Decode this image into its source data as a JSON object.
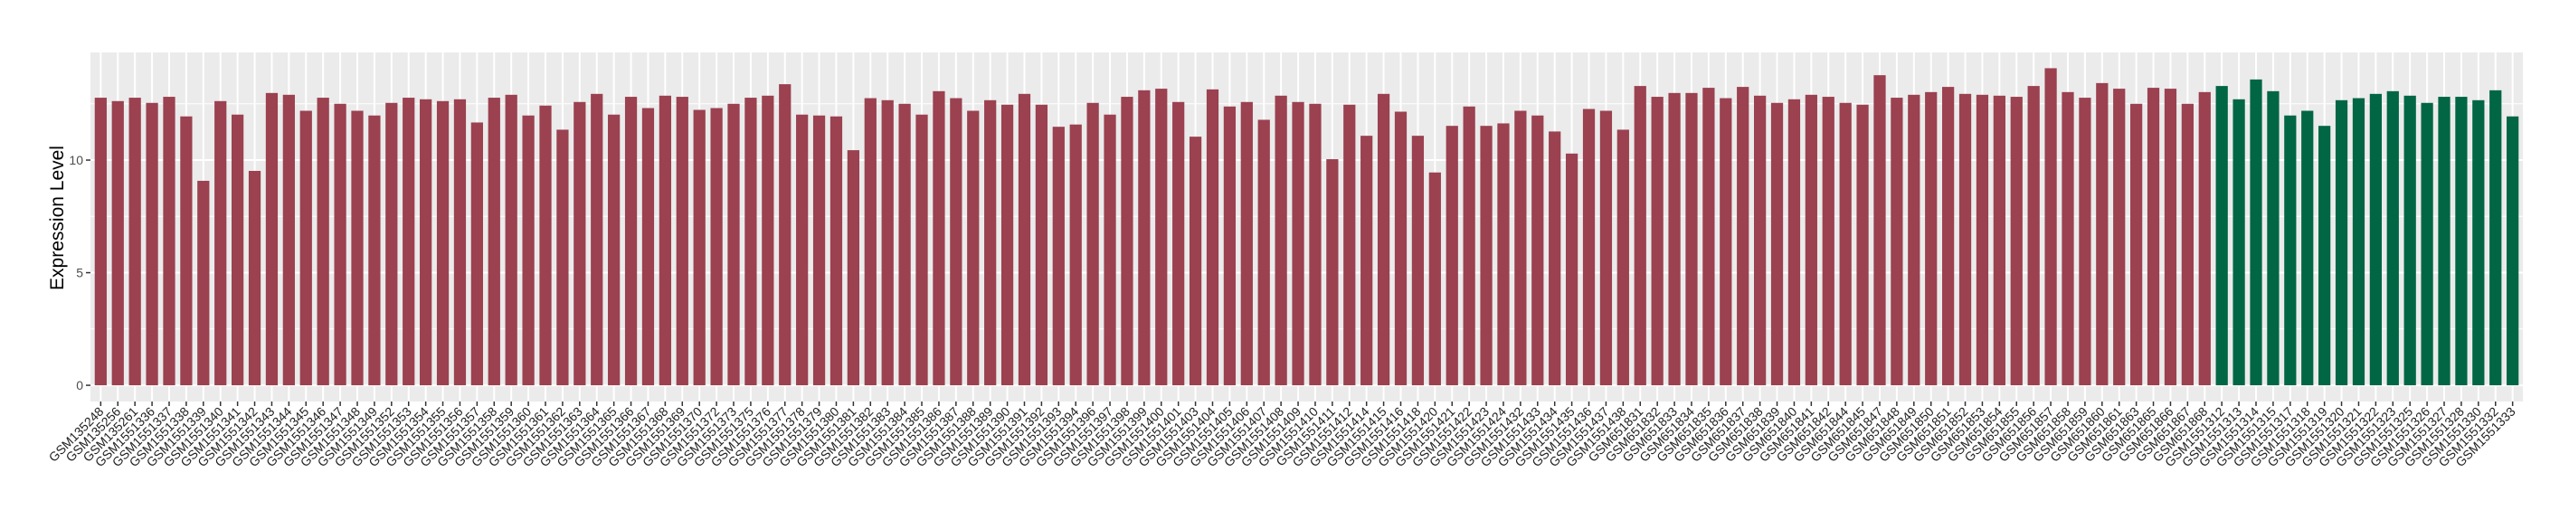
{
  "chart_data": {
    "type": "bar",
    "title": "",
    "xlabel": "",
    "ylabel": "Expression Level",
    "ylim": [
      -0.72,
      14.78
    ],
    "yticks": [
      0,
      5,
      10
    ],
    "grid": true,
    "legend": "none",
    "colors": {
      "group1": "#9b4150",
      "group2": "#016644",
      "panel": "#ebebeb",
      "grid": "#ffffff"
    },
    "categories": [
      "GSM135248",
      "GSM135256",
      "GSM135261",
      "GSM1551336",
      "GSM1551337",
      "GSM1551338",
      "GSM1551339",
      "GSM1551340",
      "GSM1551341",
      "GSM1551342",
      "GSM1551343",
      "GSM1551344",
      "GSM1551345",
      "GSM1551346",
      "GSM1551347",
      "GSM1551348",
      "GSM1551349",
      "GSM1551352",
      "GSM1551353",
      "GSM1551354",
      "GSM1551355",
      "GSM1551356",
      "GSM1551357",
      "GSM1551358",
      "GSM1551359",
      "GSM1551360",
      "GSM1551361",
      "GSM1551362",
      "GSM1551363",
      "GSM1551364",
      "GSM1551365",
      "GSM1551366",
      "GSM1551367",
      "GSM1551368",
      "GSM1551369",
      "GSM1551370",
      "GSM1551372",
      "GSM1551373",
      "GSM1551375",
      "GSM1551376",
      "GSM1551377",
      "GSM1551378",
      "GSM1551379",
      "GSM1551380",
      "GSM1551381",
      "GSM1551382",
      "GSM1551383",
      "GSM1551384",
      "GSM1551385",
      "GSM1551386",
      "GSM1551387",
      "GSM1551388",
      "GSM1551389",
      "GSM1551390",
      "GSM1551391",
      "GSM1551392",
      "GSM1551393",
      "GSM1551394",
      "GSM1551396",
      "GSM1551397",
      "GSM1551398",
      "GSM1551399",
      "GSM1551400",
      "GSM1551401",
      "GSM1551403",
      "GSM1551404",
      "GSM1551405",
      "GSM1551406",
      "GSM1551407",
      "GSM1551408",
      "GSM1551409",
      "GSM1551410",
      "GSM1551411",
      "GSM1551412",
      "GSM1551414",
      "GSM1551415",
      "GSM1551416",
      "GSM1551418",
      "GSM1551420",
      "GSM1551421",
      "GSM1551422",
      "GSM1551423",
      "GSM1551424",
      "GSM1551432",
      "GSM1551433",
      "GSM1551434",
      "GSM1551435",
      "GSM1551436",
      "GSM1551437",
      "GSM1551438",
      "GSM651831",
      "GSM651832",
      "GSM651833",
      "GSM651834",
      "GSM651835",
      "GSM651836",
      "GSM651837",
      "GSM651838",
      "GSM651839",
      "GSM651840",
      "GSM651841",
      "GSM651842",
      "GSM651844",
      "GSM651845",
      "GSM651847",
      "GSM651848",
      "GSM651849",
      "GSM651850",
      "GSM651851",
      "GSM651852",
      "GSM651853",
      "GSM651854",
      "GSM651855",
      "GSM651856",
      "GSM651857",
      "GSM651858",
      "GSM651859",
      "GSM651860",
      "GSM651861",
      "GSM651863",
      "GSM651865",
      "GSM651866",
      "GSM651867",
      "GSM651868",
      "GSM1551312",
      "GSM1551313",
      "GSM1551314",
      "GSM1551315",
      "GSM1551317",
      "GSM1551318",
      "GSM1551319",
      "GSM1551320",
      "GSM1551321",
      "GSM1551322",
      "GSM1551323",
      "GSM1551325",
      "GSM1551326",
      "GSM1551327",
      "GSM1551328",
      "GSM1551330",
      "GSM1551332",
      "GSM1551333"
    ],
    "values": [
      12.77,
      12.62,
      12.77,
      12.54,
      12.81,
      11.94,
      9.08,
      12.62,
      12.02,
      9.52,
      12.98,
      12.9,
      12.19,
      12.77,
      12.5,
      12.19,
      11.98,
      12.54,
      12.77,
      12.7,
      12.62,
      12.7,
      11.67,
      12.77,
      12.9,
      11.98,
      12.42,
      11.35,
      12.58,
      12.94,
      12.02,
      12.81,
      12.31,
      12.86,
      12.81,
      12.23,
      12.31,
      12.5,
      12.77,
      12.86,
      13.37,
      12.02,
      11.98,
      11.94,
      10.44,
      12.75,
      12.66,
      12.5,
      12.02,
      13.06,
      12.75,
      12.19,
      12.66,
      12.46,
      12.94,
      12.46,
      11.48,
      11.58,
      12.54,
      12.02,
      12.81,
      13.1,
      13.17,
      12.58,
      11.04,
      13.14,
      12.38,
      12.58,
      11.79,
      12.86,
      12.58,
      12.5,
      10.04,
      12.46,
      11.08,
      12.94,
      12.15,
      11.08,
      9.45,
      11.52,
      12.38,
      11.52,
      11.63,
      12.19,
      11.98,
      11.27,
      10.29,
      12.27,
      12.19,
      11.35,
      13.29,
      12.81,
      12.98,
      12.98,
      13.21,
      12.75,
      13.25,
      12.86,
      12.54,
      12.7,
      12.9,
      12.81,
      12.54,
      12.46,
      13.77,
      12.77,
      12.9,
      13.02,
      13.25,
      12.94,
      12.9,
      12.86,
      12.81,
      13.29,
      14.08,
      13.02,
      12.77,
      13.42,
      13.17,
      12.5,
      13.21,
      13.17,
      12.5,
      13.02,
      13.29,
      12.7,
      13.58,
      13.06,
      11.98,
      12.19,
      11.52,
      12.66,
      12.75,
      12.94,
      13.06,
      12.86,
      12.54,
      12.81,
      12.81,
      12.66,
      13.1,
      11.94
    ],
    "groups": [
      1,
      1,
      1,
      1,
      1,
      1,
      1,
      1,
      1,
      1,
      1,
      1,
      1,
      1,
      1,
      1,
      1,
      1,
      1,
      1,
      1,
      1,
      1,
      1,
      1,
      1,
      1,
      1,
      1,
      1,
      1,
      1,
      1,
      1,
      1,
      1,
      1,
      1,
      1,
      1,
      1,
      1,
      1,
      1,
      1,
      1,
      1,
      1,
      1,
      1,
      1,
      1,
      1,
      1,
      1,
      1,
      1,
      1,
      1,
      1,
      1,
      1,
      1,
      1,
      1,
      1,
      1,
      1,
      1,
      1,
      1,
      1,
      1,
      1,
      1,
      1,
      1,
      1,
      1,
      1,
      1,
      1,
      1,
      1,
      1,
      1,
      1,
      1,
      1,
      1,
      1,
      1,
      1,
      1,
      1,
      1,
      1,
      1,
      1,
      1,
      1,
      1,
      1,
      1,
      1,
      1,
      1,
      1,
      1,
      1,
      1,
      1,
      1,
      1,
      1,
      1,
      1,
      1,
      1,
      1,
      1,
      1,
      1,
      1,
      2,
      2,
      2,
      2,
      2,
      2,
      2,
      2,
      2,
      2,
      2,
      2,
      2,
      2,
      2,
      2,
      2,
      2
    ]
  }
}
